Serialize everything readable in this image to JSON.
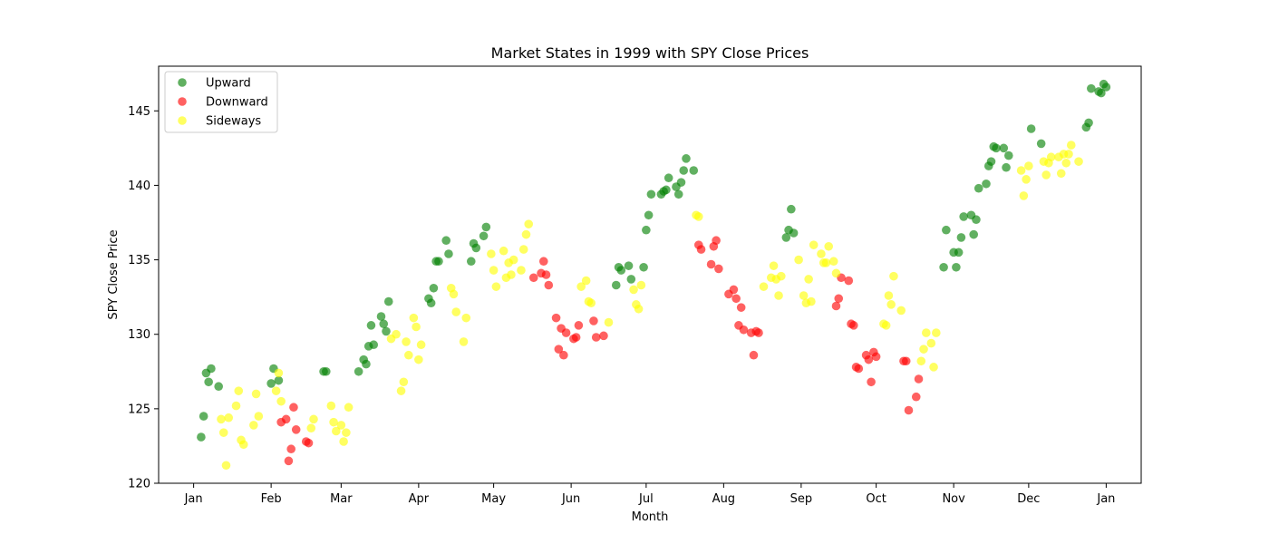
{
  "chart_data": {
    "type": "scatter",
    "title": "Market States in 1999 with SPY Close Prices",
    "xlabel": "Month",
    "ylabel": "SPY Close Price",
    "x_ticks": [
      "Jan",
      "Feb",
      "Mar",
      "Apr",
      "May",
      "Jun",
      "Jul",
      "Aug",
      "Sep",
      "Oct",
      "Nov",
      "Dec",
      "Jan"
    ],
    "xlim": [
      "1998-12-18",
      "2000-01-15"
    ],
    "ylim": [
      120,
      148
    ],
    "y_ticks": [
      120,
      125,
      130,
      135,
      140,
      145
    ],
    "grid": false,
    "legend_position": "top-left",
    "series": [
      {
        "name": "Upward",
        "color": "#008000",
        "points": [
          [
            "1999-01-04",
            123.1
          ],
          [
            "1999-01-05",
            124.5
          ],
          [
            "1999-01-06",
            127.4
          ],
          [
            "1999-01-07",
            126.8
          ],
          [
            "1999-01-08",
            127.7
          ],
          [
            "1999-01-11",
            126.5
          ],
          [
            "1999-02-01",
            126.7
          ],
          [
            "1999-02-02",
            127.7
          ],
          [
            "1999-02-04",
            126.9
          ],
          [
            "1999-02-22",
            127.5
          ],
          [
            "1999-02-23",
            127.5
          ],
          [
            "1999-03-08",
            127.5
          ],
          [
            "1999-03-10",
            128.3
          ],
          [
            "1999-03-11",
            128.0
          ],
          [
            "1999-03-12",
            129.2
          ],
          [
            "1999-03-13",
            130.6
          ],
          [
            "1999-03-14",
            129.3
          ],
          [
            "1999-03-17",
            131.2
          ],
          [
            "1999-03-18",
            130.7
          ],
          [
            "1999-03-19",
            130.2
          ],
          [
            "1999-03-20",
            132.2
          ],
          [
            "1999-04-05",
            132.4
          ],
          [
            "1999-04-06",
            132.1
          ],
          [
            "1999-04-07",
            133.1
          ],
          [
            "1999-04-08",
            134.9
          ],
          [
            "1999-04-09",
            134.9
          ],
          [
            "1999-04-12",
            136.3
          ],
          [
            "1999-04-13",
            135.4
          ],
          [
            "1999-04-22",
            134.9
          ],
          [
            "1999-04-23",
            136.1
          ],
          [
            "1999-04-24",
            135.8
          ],
          [
            "1999-04-27",
            136.6
          ],
          [
            "1999-04-28",
            137.2
          ],
          [
            "1999-06-19",
            133.3
          ],
          [
            "1999-06-20",
            134.5
          ],
          [
            "1999-06-21",
            134.3
          ],
          [
            "1999-06-24",
            134.6
          ],
          [
            "1999-06-25",
            133.7
          ],
          [
            "1999-06-30",
            134.5
          ],
          [
            "1999-07-01",
            137.0
          ],
          [
            "1999-07-02",
            138.0
          ],
          [
            "1999-07-03",
            139.4
          ],
          [
            "1999-07-07",
            139.4
          ],
          [
            "1999-07-08",
            139.6
          ],
          [
            "1999-07-09",
            139.7
          ],
          [
            "1999-07-10",
            140.5
          ],
          [
            "1999-07-13",
            139.9
          ],
          [
            "1999-07-14",
            139.4
          ],
          [
            "1999-07-15",
            140.2
          ],
          [
            "1999-07-16",
            141.0
          ],
          [
            "1999-07-17",
            141.8
          ],
          [
            "1999-07-20",
            141.0
          ],
          [
            "1999-08-26",
            136.5
          ],
          [
            "1999-08-27",
            137.0
          ],
          [
            "1999-08-28",
            138.4
          ],
          [
            "1999-08-29",
            136.8
          ],
          [
            "1999-10-28",
            134.5
          ],
          [
            "1999-10-29",
            137.0
          ],
          [
            "1999-11-01",
            135.5
          ],
          [
            "1999-11-02",
            134.5
          ],
          [
            "1999-11-03",
            135.5
          ],
          [
            "1999-11-04",
            136.5
          ],
          [
            "1999-11-05",
            137.9
          ],
          [
            "1999-11-08",
            138.0
          ],
          [
            "1999-11-09",
            136.7
          ],
          [
            "1999-11-10",
            137.7
          ],
          [
            "1999-11-11",
            139.8
          ],
          [
            "1999-11-14",
            140.1
          ],
          [
            "1999-11-15",
            141.3
          ],
          [
            "1999-11-16",
            141.6
          ],
          [
            "1999-11-17",
            142.6
          ],
          [
            "1999-11-18",
            142.5
          ],
          [
            "1999-11-21",
            142.5
          ],
          [
            "1999-11-22",
            141.2
          ],
          [
            "1999-11-23",
            142.0
          ],
          [
            "1999-12-02",
            143.8
          ],
          [
            "1999-12-06",
            142.8
          ],
          [
            "1999-12-24",
            143.9
          ],
          [
            "1999-12-25",
            144.2
          ],
          [
            "1999-12-26",
            146.5
          ],
          [
            "1999-12-29",
            146.3
          ],
          [
            "1999-12-30",
            146.2
          ],
          [
            "1999-12-31",
            146.8
          ],
          [
            "2000-01-01",
            146.6
          ]
        ]
      },
      {
        "name": "Downward",
        "color": "#ff0000",
        "points": [
          [
            "1999-02-05",
            124.1
          ],
          [
            "1999-02-07",
            124.3
          ],
          [
            "1999-02-08",
            121.5
          ],
          [
            "1999-02-09",
            122.3
          ],
          [
            "1999-02-10",
            125.1
          ],
          [
            "1999-02-11",
            123.6
          ],
          [
            "1999-02-15",
            122.8
          ],
          [
            "1999-02-16",
            122.7
          ],
          [
            "1999-05-17",
            133.8
          ],
          [
            "1999-05-20",
            134.1
          ],
          [
            "1999-05-21",
            134.9
          ],
          [
            "1999-05-22",
            134.0
          ],
          [
            "1999-05-23",
            133.3
          ],
          [
            "1999-05-26",
            131.1
          ],
          [
            "1999-05-27",
            129.0
          ],
          [
            "1999-05-28",
            130.4
          ],
          [
            "1999-05-29",
            128.6
          ],
          [
            "1999-05-30",
            130.1
          ],
          [
            "1999-06-02",
            129.7
          ],
          [
            "1999-06-03",
            129.8
          ],
          [
            "1999-06-04",
            130.6
          ],
          [
            "1999-06-10",
            130.9
          ],
          [
            "1999-06-11",
            129.8
          ],
          [
            "1999-06-14",
            129.9
          ],
          [
            "1999-07-22",
            136.0
          ],
          [
            "1999-07-23",
            135.7
          ],
          [
            "1999-07-27",
            134.7
          ],
          [
            "1999-07-28",
            135.9
          ],
          [
            "1999-07-29",
            136.3
          ],
          [
            "1999-07-30",
            134.4
          ],
          [
            "1999-08-03",
            132.7
          ],
          [
            "1999-08-05",
            133.0
          ],
          [
            "1999-08-06",
            132.4
          ],
          [
            "1999-08-07",
            130.6
          ],
          [
            "1999-08-08",
            131.8
          ],
          [
            "1999-08-09",
            130.3
          ],
          [
            "1999-08-12",
            130.1
          ],
          [
            "1999-08-13",
            128.6
          ],
          [
            "1999-08-14",
            130.2
          ],
          [
            "1999-08-15",
            130.1
          ],
          [
            "1999-09-15",
            131.9
          ],
          [
            "1999-09-16",
            132.4
          ],
          [
            "1999-09-17",
            133.8
          ],
          [
            "1999-09-20",
            133.6
          ],
          [
            "1999-09-21",
            130.7
          ],
          [
            "1999-09-22",
            130.6
          ],
          [
            "1999-09-23",
            127.8
          ],
          [
            "1999-09-24",
            127.7
          ],
          [
            "1999-09-27",
            128.6
          ],
          [
            "1999-09-28",
            128.3
          ],
          [
            "1999-09-29",
            126.8
          ],
          [
            "1999-09-30",
            128.8
          ],
          [
            "1999-10-01",
            128.5
          ],
          [
            "1999-10-12",
            128.2
          ],
          [
            "1999-10-13",
            128.2
          ],
          [
            "1999-10-14",
            124.9
          ],
          [
            "1999-10-17",
            125.8
          ],
          [
            "1999-10-18",
            127.0
          ]
        ]
      },
      {
        "name": "Sideways",
        "color": "#ffff00",
        "points": [
          [
            "1999-01-12",
            124.3
          ],
          [
            "1999-01-13",
            123.4
          ],
          [
            "1999-01-14",
            121.2
          ],
          [
            "1999-01-15",
            124.4
          ],
          [
            "1999-01-18",
            125.2
          ],
          [
            "1999-01-19",
            126.2
          ],
          [
            "1999-01-20",
            122.9
          ],
          [
            "1999-01-21",
            122.6
          ],
          [
            "1999-01-25",
            123.9
          ],
          [
            "1999-01-26",
            126.0
          ],
          [
            "1999-01-27",
            124.5
          ],
          [
            "1999-02-03",
            126.2
          ],
          [
            "1999-02-04",
            127.4
          ],
          [
            "1999-02-05",
            125.5
          ],
          [
            "1999-02-17",
            123.7
          ],
          [
            "1999-02-18",
            124.3
          ],
          [
            "1999-02-25",
            125.2
          ],
          [
            "1999-02-26",
            124.1
          ],
          [
            "1999-02-27",
            123.5
          ],
          [
            "1999-03-01",
            123.9
          ],
          [
            "1999-03-02",
            122.8
          ],
          [
            "1999-03-03",
            123.4
          ],
          [
            "1999-03-04",
            125.1
          ],
          [
            "1999-03-21",
            129.7
          ],
          [
            "1999-03-23",
            130.0
          ],
          [
            "1999-03-25",
            126.2
          ],
          [
            "1999-03-26",
            126.8
          ],
          [
            "1999-03-27",
            129.5
          ],
          [
            "1999-03-28",
            128.6
          ],
          [
            "1999-03-30",
            131.1
          ],
          [
            "1999-03-31",
            130.5
          ],
          [
            "1999-04-01",
            128.3
          ],
          [
            "1999-04-02",
            129.3
          ],
          [
            "1999-04-14",
            133.1
          ],
          [
            "1999-04-15",
            132.7
          ],
          [
            "1999-04-16",
            131.5
          ],
          [
            "1999-04-19",
            129.5
          ],
          [
            "1999-04-20",
            131.1
          ],
          [
            "1999-04-30",
            135.4
          ],
          [
            "1999-05-01",
            134.3
          ],
          [
            "1999-05-02",
            133.2
          ],
          [
            "1999-05-05",
            135.6
          ],
          [
            "1999-05-06",
            133.8
          ],
          [
            "1999-05-07",
            134.8
          ],
          [
            "1999-05-08",
            134.0
          ],
          [
            "1999-05-09",
            135.0
          ],
          [
            "1999-05-12",
            134.3
          ],
          [
            "1999-05-13",
            135.7
          ],
          [
            "1999-05-14",
            136.7
          ],
          [
            "1999-05-15",
            137.4
          ],
          [
            "1999-06-05",
            133.2
          ],
          [
            "1999-06-07",
            133.6
          ],
          [
            "1999-06-08",
            132.2
          ],
          [
            "1999-06-09",
            132.1
          ],
          [
            "1999-06-16",
            130.8
          ],
          [
            "1999-06-26",
            133.0
          ],
          [
            "1999-06-27",
            132.0
          ],
          [
            "1999-06-28",
            131.7
          ],
          [
            "1999-06-29",
            133.3
          ],
          [
            "1999-07-21",
            138.0
          ],
          [
            "1999-07-22",
            137.9
          ],
          [
            "1999-08-17",
            133.2
          ],
          [
            "1999-08-20",
            133.8
          ],
          [
            "1999-08-21",
            134.6
          ],
          [
            "1999-08-22",
            133.7
          ],
          [
            "1999-08-23",
            132.6
          ],
          [
            "1999-08-24",
            133.9
          ],
          [
            "1999-08-31",
            135.0
          ],
          [
            "1999-09-02",
            132.6
          ],
          [
            "1999-09-03",
            132.1
          ],
          [
            "1999-09-04",
            133.7
          ],
          [
            "1999-09-05",
            132.2
          ],
          [
            "1999-09-06",
            136.0
          ],
          [
            "1999-09-09",
            135.4
          ],
          [
            "1999-09-10",
            134.8
          ],
          [
            "1999-09-11",
            134.8
          ],
          [
            "1999-09-12",
            135.9
          ],
          [
            "1999-09-14",
            134.9
          ],
          [
            "1999-09-15",
            134.1
          ],
          [
            "1999-10-04",
            130.7
          ],
          [
            "1999-10-05",
            130.6
          ],
          [
            "1999-10-06",
            132.6
          ],
          [
            "1999-10-07",
            132.0
          ],
          [
            "1999-10-08",
            133.9
          ],
          [
            "1999-10-11",
            131.6
          ],
          [
            "1999-10-19",
            128.2
          ],
          [
            "1999-10-20",
            129.0
          ],
          [
            "1999-10-21",
            130.1
          ],
          [
            "1999-10-23",
            129.4
          ],
          [
            "1999-10-24",
            127.8
          ],
          [
            "1999-10-25",
            130.1
          ],
          [
            "1999-11-28",
            141.0
          ],
          [
            "1999-11-29",
            139.3
          ],
          [
            "1999-11-30",
            140.4
          ],
          [
            "1999-12-01",
            141.3
          ],
          [
            "1999-12-07",
            141.6
          ],
          [
            "1999-12-08",
            140.7
          ],
          [
            "1999-12-09",
            141.5
          ],
          [
            "1999-12-10",
            141.9
          ],
          [
            "1999-12-13",
            141.9
          ],
          [
            "1999-12-14",
            140.8
          ],
          [
            "1999-12-15",
            142.1
          ],
          [
            "1999-12-16",
            141.5
          ],
          [
            "1999-12-17",
            142.1
          ],
          [
            "1999-12-18",
            142.7
          ],
          [
            "1999-12-21",
            141.6
          ]
        ]
      }
    ]
  }
}
